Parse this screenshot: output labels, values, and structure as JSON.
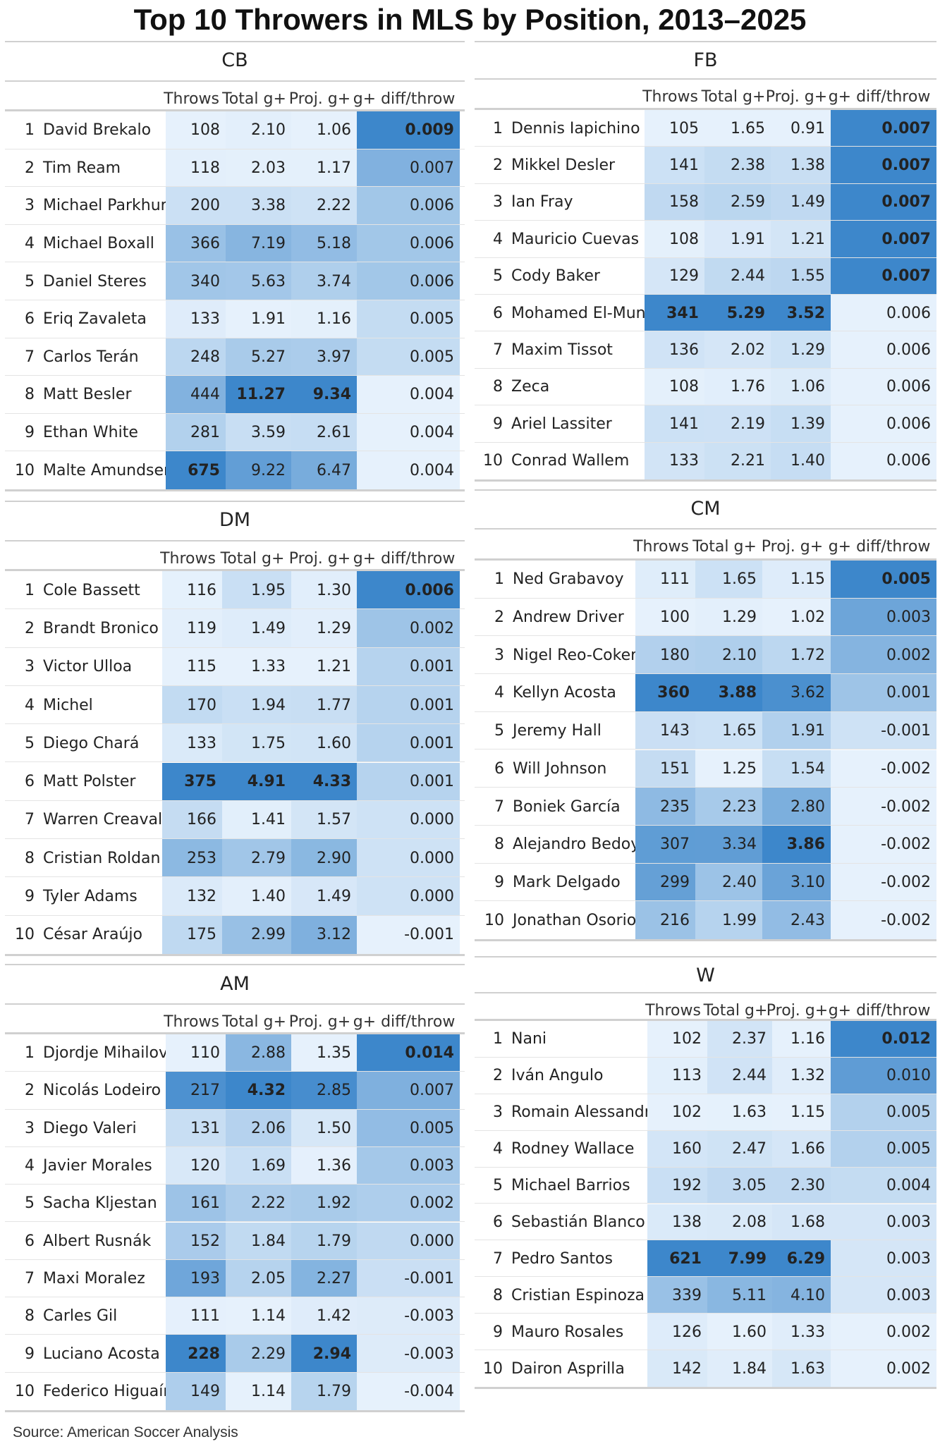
{
  "title": "Top 10 Throwers in MLS by Position, 2013–2025",
  "source": "Source: American Soccer Analysis",
  "colors": {
    "light": "#e6f1fc",
    "dark": "#3d87cb",
    "text": "#222222"
  },
  "chart_data": {
    "type": "table",
    "columns": [
      "",
      "",
      "Throws",
      "Total g+",
      "Proj. g+",
      "g+ diff/throw"
    ],
    "panels": [
      {
        "position": "CB",
        "rows": [
          [
            "1",
            "David Brekalo",
            "108",
            "2.10",
            "1.06",
            "0.009"
          ],
          [
            "2",
            "Tim Ream",
            "118",
            "2.03",
            "1.17",
            "0.007"
          ],
          [
            "3",
            "Michael Parkhurst",
            "200",
            "3.38",
            "2.22",
            "0.006"
          ],
          [
            "4",
            "Michael Boxall",
            "366",
            "7.19",
            "5.18",
            "0.006"
          ],
          [
            "5",
            "Daniel Steres",
            "340",
            "5.63",
            "3.74",
            "0.006"
          ],
          [
            "6",
            "Eriq Zavaleta",
            "133",
            "1.91",
            "1.16",
            "0.005"
          ],
          [
            "7",
            "Carlos Terán",
            "248",
            "5.27",
            "3.97",
            "0.005"
          ],
          [
            "8",
            "Matt Besler",
            "444",
            "11.27",
            "9.34",
            "0.004"
          ],
          [
            "9",
            "Ethan White",
            "281",
            "3.59",
            "2.61",
            "0.004"
          ],
          [
            "10",
            "Malte Amundsen",
            "675",
            "9.22",
            "6.47",
            "0.004"
          ]
        ]
      },
      {
        "position": "FB",
        "rows": [
          [
            "1",
            "Dennis Iapichino",
            "105",
            "1.65",
            "0.91",
            "0.007"
          ],
          [
            "2",
            "Mikkel Desler",
            "141",
            "2.38",
            "1.38",
            "0.007"
          ],
          [
            "3",
            "Ian Fray",
            "158",
            "2.59",
            "1.49",
            "0.007"
          ],
          [
            "4",
            "Mauricio Cuevas",
            "108",
            "1.91",
            "1.21",
            "0.007"
          ],
          [
            "5",
            "Cody Baker",
            "129",
            "2.44",
            "1.55",
            "0.007"
          ],
          [
            "6",
            "Mohamed El-Munir",
            "341",
            "5.29",
            "3.52",
            "0.006"
          ],
          [
            "7",
            "Maxim Tissot",
            "136",
            "2.02",
            "1.29",
            "0.006"
          ],
          [
            "8",
            "Zeca",
            "108",
            "1.76",
            "1.06",
            "0.006"
          ],
          [
            "9",
            "Ariel Lassiter",
            "141",
            "2.19",
            "1.39",
            "0.006"
          ],
          [
            "10",
            "Conrad Wallem",
            "133",
            "2.21",
            "1.40",
            "0.006"
          ]
        ]
      },
      {
        "position": "DM",
        "rows": [
          [
            "1",
            "Cole Bassett",
            "116",
            "1.95",
            "1.30",
            "0.006"
          ],
          [
            "2",
            "Brandt Bronico",
            "119",
            "1.49",
            "1.29",
            "0.002"
          ],
          [
            "3",
            "Victor Ulloa",
            "115",
            "1.33",
            "1.21",
            "0.001"
          ],
          [
            "4",
            "Michel",
            "170",
            "1.94",
            "1.77",
            "0.001"
          ],
          [
            "5",
            "Diego Chará",
            "133",
            "1.75",
            "1.60",
            "0.001"
          ],
          [
            "6",
            "Matt Polster",
            "375",
            "4.91",
            "4.33",
            "0.001"
          ],
          [
            "7",
            "Warren Creavalle",
            "166",
            "1.41",
            "1.57",
            "0.000"
          ],
          [
            "8",
            "Cristian Roldan",
            "253",
            "2.79",
            "2.90",
            "0.000"
          ],
          [
            "9",
            "Tyler Adams",
            "132",
            "1.40",
            "1.49",
            "0.000"
          ],
          [
            "10",
            "César Araújo",
            "175",
            "2.99",
            "3.12",
            "-0.001"
          ]
        ]
      },
      {
        "position": "CM",
        "rows": [
          [
            "1",
            "Ned Grabavoy",
            "111",
            "1.65",
            "1.15",
            "0.005"
          ],
          [
            "2",
            "Andrew Driver",
            "100",
            "1.29",
            "1.02",
            "0.003"
          ],
          [
            "3",
            "Nigel Reo-Coker",
            "180",
            "2.10",
            "1.72",
            "0.002"
          ],
          [
            "4",
            "Kellyn Acosta",
            "360",
            "3.88",
            "3.62",
            "0.001"
          ],
          [
            "5",
            "Jeremy Hall",
            "143",
            "1.65",
            "1.91",
            "-0.001"
          ],
          [
            "6",
            "Will Johnson",
            "151",
            "1.25",
            "1.54",
            "-0.002"
          ],
          [
            "7",
            "Boniek García",
            "235",
            "2.23",
            "2.80",
            "-0.002"
          ],
          [
            "8",
            "Alejandro Bedoya",
            "307",
            "3.34",
            "3.86",
            "-0.002"
          ],
          [
            "9",
            "Mark Delgado",
            "299",
            "2.40",
            "3.10",
            "-0.002"
          ],
          [
            "10",
            "Jonathan Osorio",
            "216",
            "1.99",
            "2.43",
            "-0.002"
          ]
        ]
      },
      {
        "position": "AM",
        "rows": [
          [
            "1",
            "Djordje Mihailovic",
            "110",
            "2.88",
            "1.35",
            "0.014"
          ],
          [
            "2",
            "Nicolás Lodeiro",
            "217",
            "4.32",
            "2.85",
            "0.007"
          ],
          [
            "3",
            "Diego Valeri",
            "131",
            "2.06",
            "1.50",
            "0.005"
          ],
          [
            "4",
            "Javier Morales",
            "120",
            "1.69",
            "1.36",
            "0.003"
          ],
          [
            "5",
            "Sacha Kljestan",
            "161",
            "2.22",
            "1.92",
            "0.002"
          ],
          [
            "6",
            "Albert Rusnák",
            "152",
            "1.84",
            "1.79",
            "0.000"
          ],
          [
            "7",
            "Maxi Moralez",
            "193",
            "2.05",
            "2.27",
            "-0.001"
          ],
          [
            "8",
            "Carles Gil",
            "111",
            "1.14",
            "1.42",
            "-0.003"
          ],
          [
            "9",
            "Luciano Acosta",
            "228",
            "2.29",
            "2.94",
            "-0.003"
          ],
          [
            "10",
            "Federico Higuaín",
            "149",
            "1.14",
            "1.79",
            "-0.004"
          ]
        ]
      },
      {
        "position": "W",
        "rows": [
          [
            "1",
            "Nani",
            "102",
            "2.37",
            "1.16",
            "0.012"
          ],
          [
            "2",
            "Iván Angulo",
            "113",
            "2.44",
            "1.32",
            "0.010"
          ],
          [
            "3",
            "Romain Alessandrini",
            "102",
            "1.63",
            "1.15",
            "0.005"
          ],
          [
            "4",
            "Rodney Wallace",
            "160",
            "2.47",
            "1.66",
            "0.005"
          ],
          [
            "5",
            "Michael Barrios",
            "192",
            "3.05",
            "2.30",
            "0.004"
          ],
          [
            "6",
            "Sebastián Blanco",
            "138",
            "2.08",
            "1.68",
            "0.003"
          ],
          [
            "7",
            "Pedro Santos",
            "621",
            "7.99",
            "6.29",
            "0.003"
          ],
          [
            "8",
            "Cristian Espinoza",
            "339",
            "5.11",
            "4.10",
            "0.003"
          ],
          [
            "9",
            "Mauro Rosales",
            "126",
            "1.60",
            "1.33",
            "0.002"
          ],
          [
            "10",
            "Dairon Asprilla",
            "142",
            "1.84",
            "1.63",
            "0.002"
          ]
        ]
      }
    ]
  }
}
